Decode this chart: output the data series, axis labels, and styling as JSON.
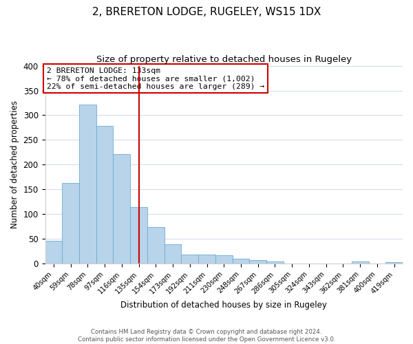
{
  "title": "2, BRERETON LODGE, RUGELEY, WS15 1DX",
  "subtitle": "Size of property relative to detached houses in Rugeley",
  "xlabel": "Distribution of detached houses by size in Rugeley",
  "ylabel": "Number of detached properties",
  "footer_line1": "Contains HM Land Registry data © Crown copyright and database right 2024.",
  "footer_line2": "Contains public sector information licensed under the Open Government Licence v3.0.",
  "bin_labels": [
    "40sqm",
    "59sqm",
    "78sqm",
    "97sqm",
    "116sqm",
    "135sqm",
    "154sqm",
    "173sqm",
    "192sqm",
    "211sqm",
    "230sqm",
    "248sqm",
    "267sqm",
    "286sqm",
    "305sqm",
    "324sqm",
    "343sqm",
    "362sqm",
    "381sqm",
    "400sqm",
    "419sqm"
  ],
  "bar_heights": [
    47,
    163,
    321,
    278,
    221,
    114,
    74,
    39,
    18,
    18,
    17,
    10,
    7,
    4,
    0,
    0,
    0,
    0,
    4,
    0,
    3
  ],
  "bar_color": "#b8d4ea",
  "bar_edge_color": "#6aaad4",
  "highlight_line_color": "#cc0000",
  "annotation_title": "2 BRERETON LODGE: 133sqm",
  "annotation_line1": "← 78% of detached houses are smaller (1,002)",
  "annotation_line2": "22% of semi-detached houses are larger (289) →",
  "annotation_box_color": "#ffffff",
  "annotation_box_edge": "#cc0000",
  "ylim": [
    0,
    400
  ],
  "yticks": [
    0,
    50,
    100,
    150,
    200,
    250,
    300,
    350,
    400
  ],
  "background_color": "#ffffff",
  "grid_color": "#d0d8e8",
  "title_fontsize": 11,
  "subtitle_fontsize": 9.5
}
